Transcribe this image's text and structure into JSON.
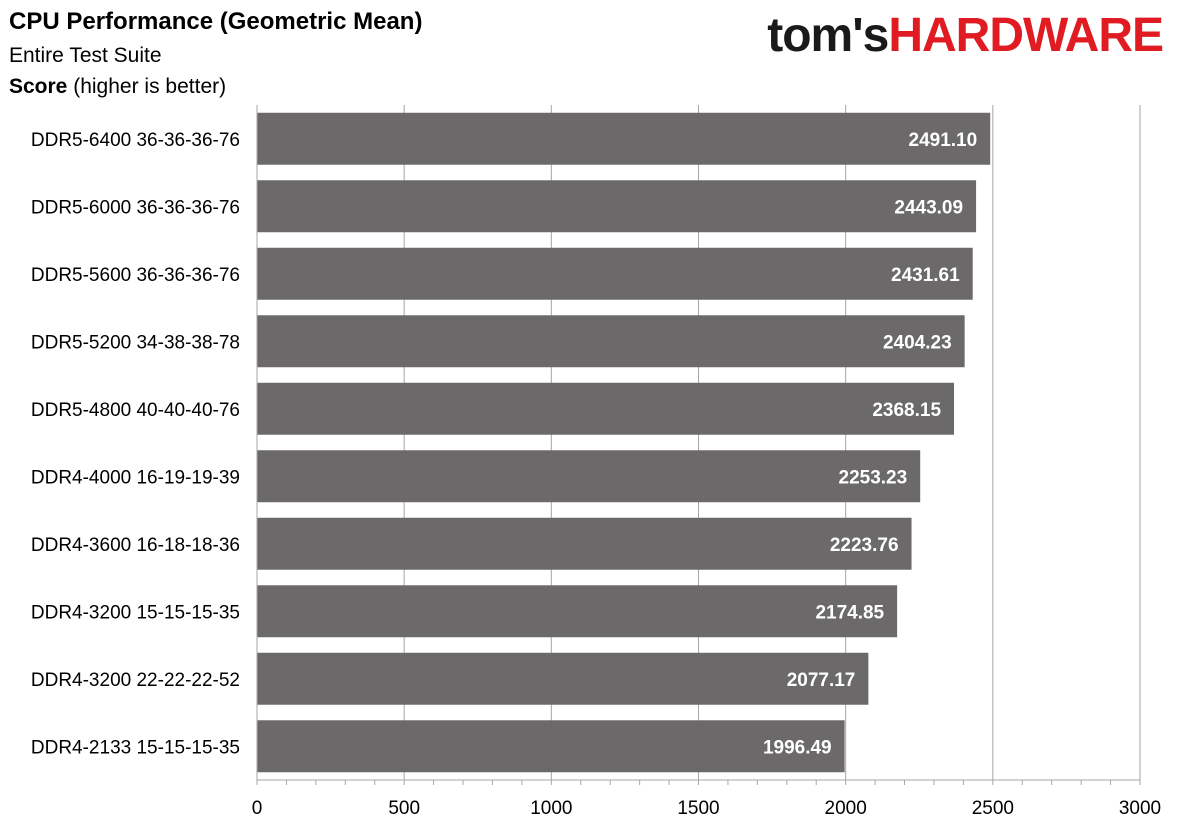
{
  "header": {
    "title": "CPU Performance (Geometric Mean)",
    "subtitle": "Entire Test Suite",
    "metric_bold": "Score",
    "metric_rest": " (higher is better)"
  },
  "logo": {
    "part1": "tom's",
    "part2": "HARDWARE",
    "color_part1": "#1a1a1a",
    "color_part2": "#e01b22"
  },
  "chart_data": {
    "type": "bar",
    "orientation": "horizontal",
    "categories": [
      "DDR5-6400 36-36-36-76",
      "DDR5-6000 36-36-36-76",
      "DDR5-5600 36-36-36-76",
      "DDR5-5200 34-38-38-78",
      "DDR5-4800 40-40-40-76",
      "DDR4-4000 16-19-19-39",
      "DDR4-3600 16-18-18-36",
      "DDR4-3200 15-15-15-35",
      "DDR4-3200 22-22-22-52",
      "DDR4-2133 15-15-15-35"
    ],
    "values": [
      2491.1,
      2443.09,
      2431.61,
      2404.23,
      2368.15,
      2253.23,
      2223.76,
      2174.85,
      2077.17,
      1996.49
    ],
    "value_labels": [
      "2491.10",
      "2443.09",
      "2431.61",
      "2404.23",
      "2368.15",
      "2253.23",
      "2223.76",
      "2174.85",
      "2077.17",
      "1996.49"
    ],
    "xlim": [
      0,
      3000
    ],
    "xticks": [
      "0",
      "500",
      "1000",
      "1500",
      "2000",
      "2500",
      "3000"
    ],
    "grid": true,
    "bar_color": "#6b6969",
    "grid_color": "#a6a6a6",
    "label_color": "#ffffff"
  }
}
